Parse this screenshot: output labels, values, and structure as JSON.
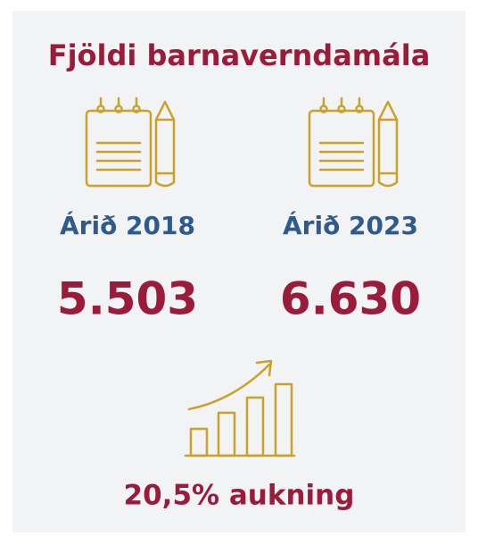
{
  "title": "Fjöldi barnaverndamála",
  "items": [
    {
      "label": "Árið 2018",
      "value": "5.503"
    },
    {
      "label": "Árið 2023",
      "value": "6.630"
    }
  ],
  "footer": "20,5% aukning"
}
